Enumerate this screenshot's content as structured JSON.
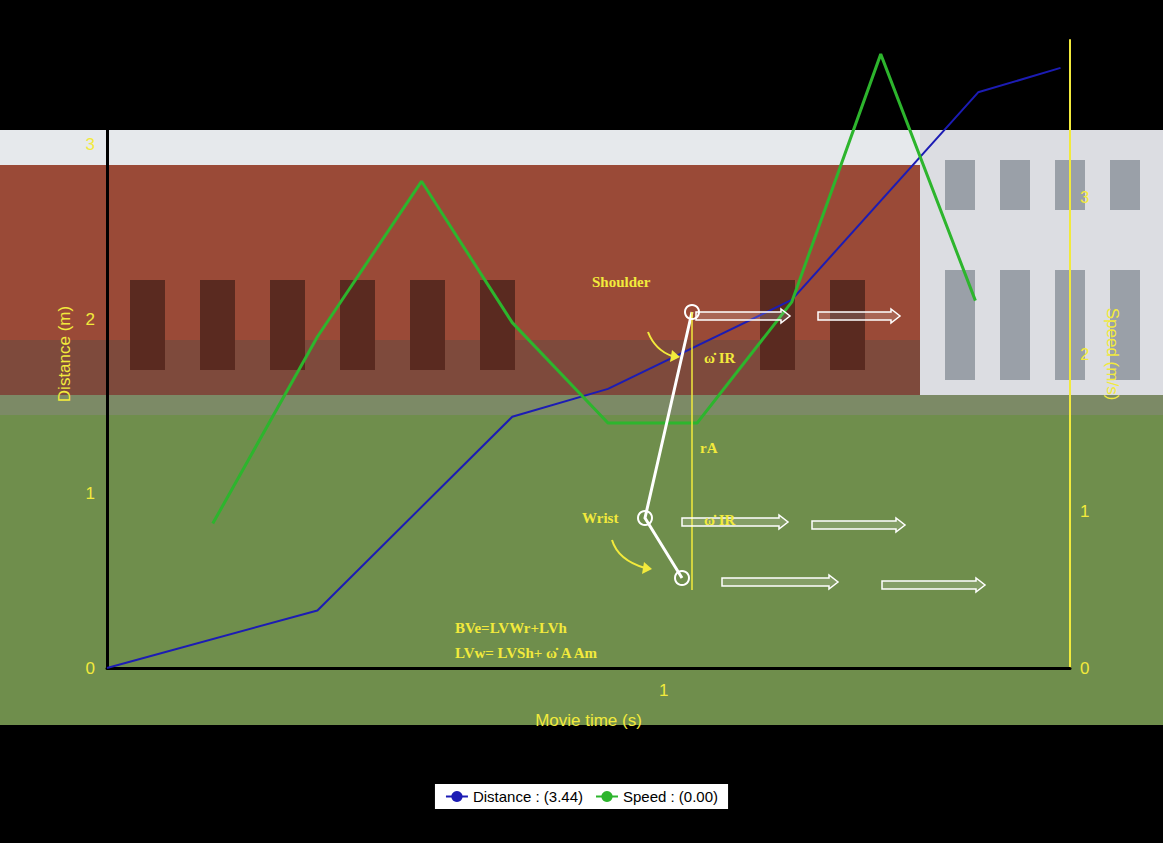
{
  "chart_data": {
    "type": "line",
    "x_label": "Movie time (s)",
    "y_label": "Distance (m)",
    "y2_label": "Speed (m/s)",
    "xlim": [
      0,
      1.73
    ],
    "xticks": [
      1
    ],
    "ylim": [
      0,
      3.6
    ],
    "yticks": [
      0,
      1,
      2,
      3
    ],
    "y2lim": [
      0,
      4
    ],
    "y2ticks": [
      0,
      1,
      2,
      3
    ],
    "grid": false,
    "legend": "bottom",
    "series": [
      {
        "name": "Distance : (3.44)",
        "color": "#1c1cb4",
        "x": [
          0,
          0.378,
          0.728,
          0.9,
          1.23,
          1.565,
          1.713
        ],
        "values": [
          0,
          0.33,
          1.44,
          1.6,
          2.11,
          3.3,
          3.44
        ]
      },
      {
        "name": "Speed : (0.00)",
        "color": "#2db52d",
        "axis": "y2",
        "x": [
          0.19,
          0.378,
          0.565,
          0.728,
          0.9,
          1.06,
          1.23,
          1.39,
          1.56
        ],
        "values": [
          0.92,
          2.11,
          3.1,
          2.2,
          1.56,
          1.56,
          2.33,
          3.91,
          2.34
        ]
      }
    ],
    "annotations": [
      "Shoulder",
      "ω̇ IR",
      "rA",
      "ω̇ IR",
      "Wrist",
      "BVe=LVWr+LVh",
      "LVw= LVSh+ ω̇ A Am"
    ]
  }
}
